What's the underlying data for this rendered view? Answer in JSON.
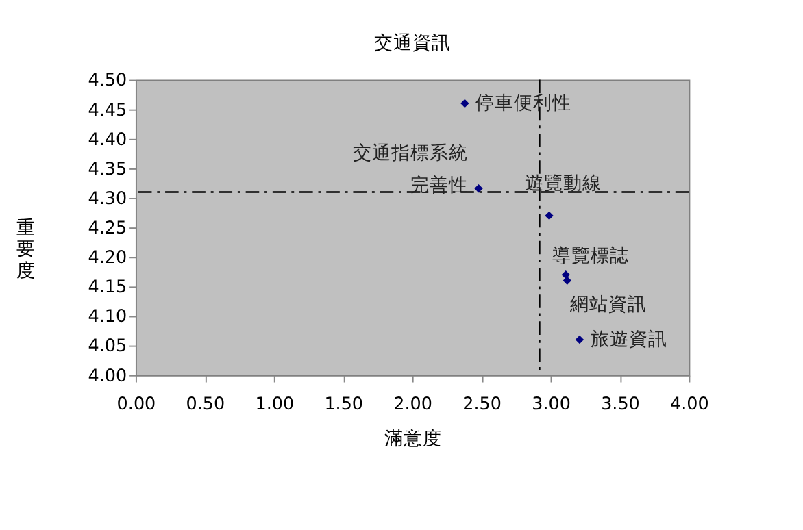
{
  "chart_data": {
    "type": "scatter",
    "title": "交通資訊",
    "xlabel": "滿意度",
    "ylabel": "重要度",
    "series": [
      {
        "color": "#000080",
        "x": [
          2.38,
          2.48,
          2.99,
          3.11,
          3.12,
          3.21
        ],
        "values": [
          4.46,
          4.316,
          4.27,
          4.17,
          4.16,
          4.06
        ]
      }
    ],
    "xlim": [
      0,
      4
    ],
    "xticks": [
      {
        "value": 0,
        "label": "0.00"
      },
      {
        "value": 0.5,
        "label": "0.50"
      },
      {
        "value": 1,
        "label": "1.00"
      },
      {
        "value": 1.5,
        "label": "1.50"
      },
      {
        "value": 2,
        "label": "2.00"
      },
      {
        "value": 2.5,
        "label": "2.50"
      },
      {
        "value": 3,
        "label": "3.00"
      },
      {
        "value": 3.5,
        "label": "3.50"
      },
      {
        "value": 4,
        "label": "4.00"
      }
    ],
    "ylim": [
      4.0,
      4.5
    ],
    "yticks": [
      {
        "value": 4.0,
        "label": "4.00"
      },
      {
        "value": 4.05,
        "label": "4.05"
      },
      {
        "value": 4.1,
        "label": "4.10"
      },
      {
        "value": 4.15,
        "label": "4.15"
      },
      {
        "value": 4.2,
        "label": "4.20"
      },
      {
        "value": 4.25,
        "label": "4.25"
      },
      {
        "value": 4.3,
        "label": "4.30"
      },
      {
        "value": 4.35,
        "label": "4.35"
      },
      {
        "value": 4.4,
        "label": "4.40"
      },
      {
        "value": 4.45,
        "label": "4.45"
      },
      {
        "value": 4.5,
        "label": "4.50"
      }
    ],
    "ref_lines": [
      {
        "axis": "x",
        "value": 2.92,
        "line_style": "dashdot"
      },
      {
        "axis": "y",
        "value": 4.31,
        "line_style": "dashdot"
      }
    ],
    "annotations": [
      {
        "text": "停車便利性",
        "x": 2.38,
        "y": 4.46
      },
      {
        "text": "交通指標系統完善性",
        "x": 2.48,
        "y": 4.316
      },
      {
        "text": "遊覽動線",
        "x": 2.99,
        "y": 4.27
      },
      {
        "text": "導覽標誌",
        "x": 3.11,
        "y": 4.17
      },
      {
        "text": "網站資訊",
        "x": 3.12,
        "y": 4.16
      },
      {
        "text": "旅遊資訊",
        "x": 3.21,
        "y": 4.06
      }
    ],
    "marker": "diamond",
    "grid": false
  }
}
